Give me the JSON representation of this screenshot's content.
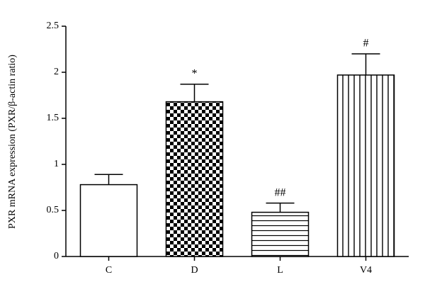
{
  "chart_data": {
    "type": "bar",
    "ylabel": "PXR mRNA expression (PXR/β-actin ratio)",
    "categories": [
      "C",
      "D",
      "L",
      "V4"
    ],
    "values": [
      0.78,
      1.68,
      0.48,
      1.97
    ],
    "errors": [
      0.11,
      0.19,
      0.1,
      0.23
    ],
    "annotations": [
      null,
      "*",
      "##",
      "#"
    ],
    "patterns": [
      "none",
      "checker",
      "hlines",
      "vlines"
    ],
    "color": "#000000",
    "ylim": [
      0,
      2.5
    ],
    "yticks": [
      0,
      0.5,
      1,
      1.5,
      2,
      2.5
    ],
    "grid": false
  }
}
